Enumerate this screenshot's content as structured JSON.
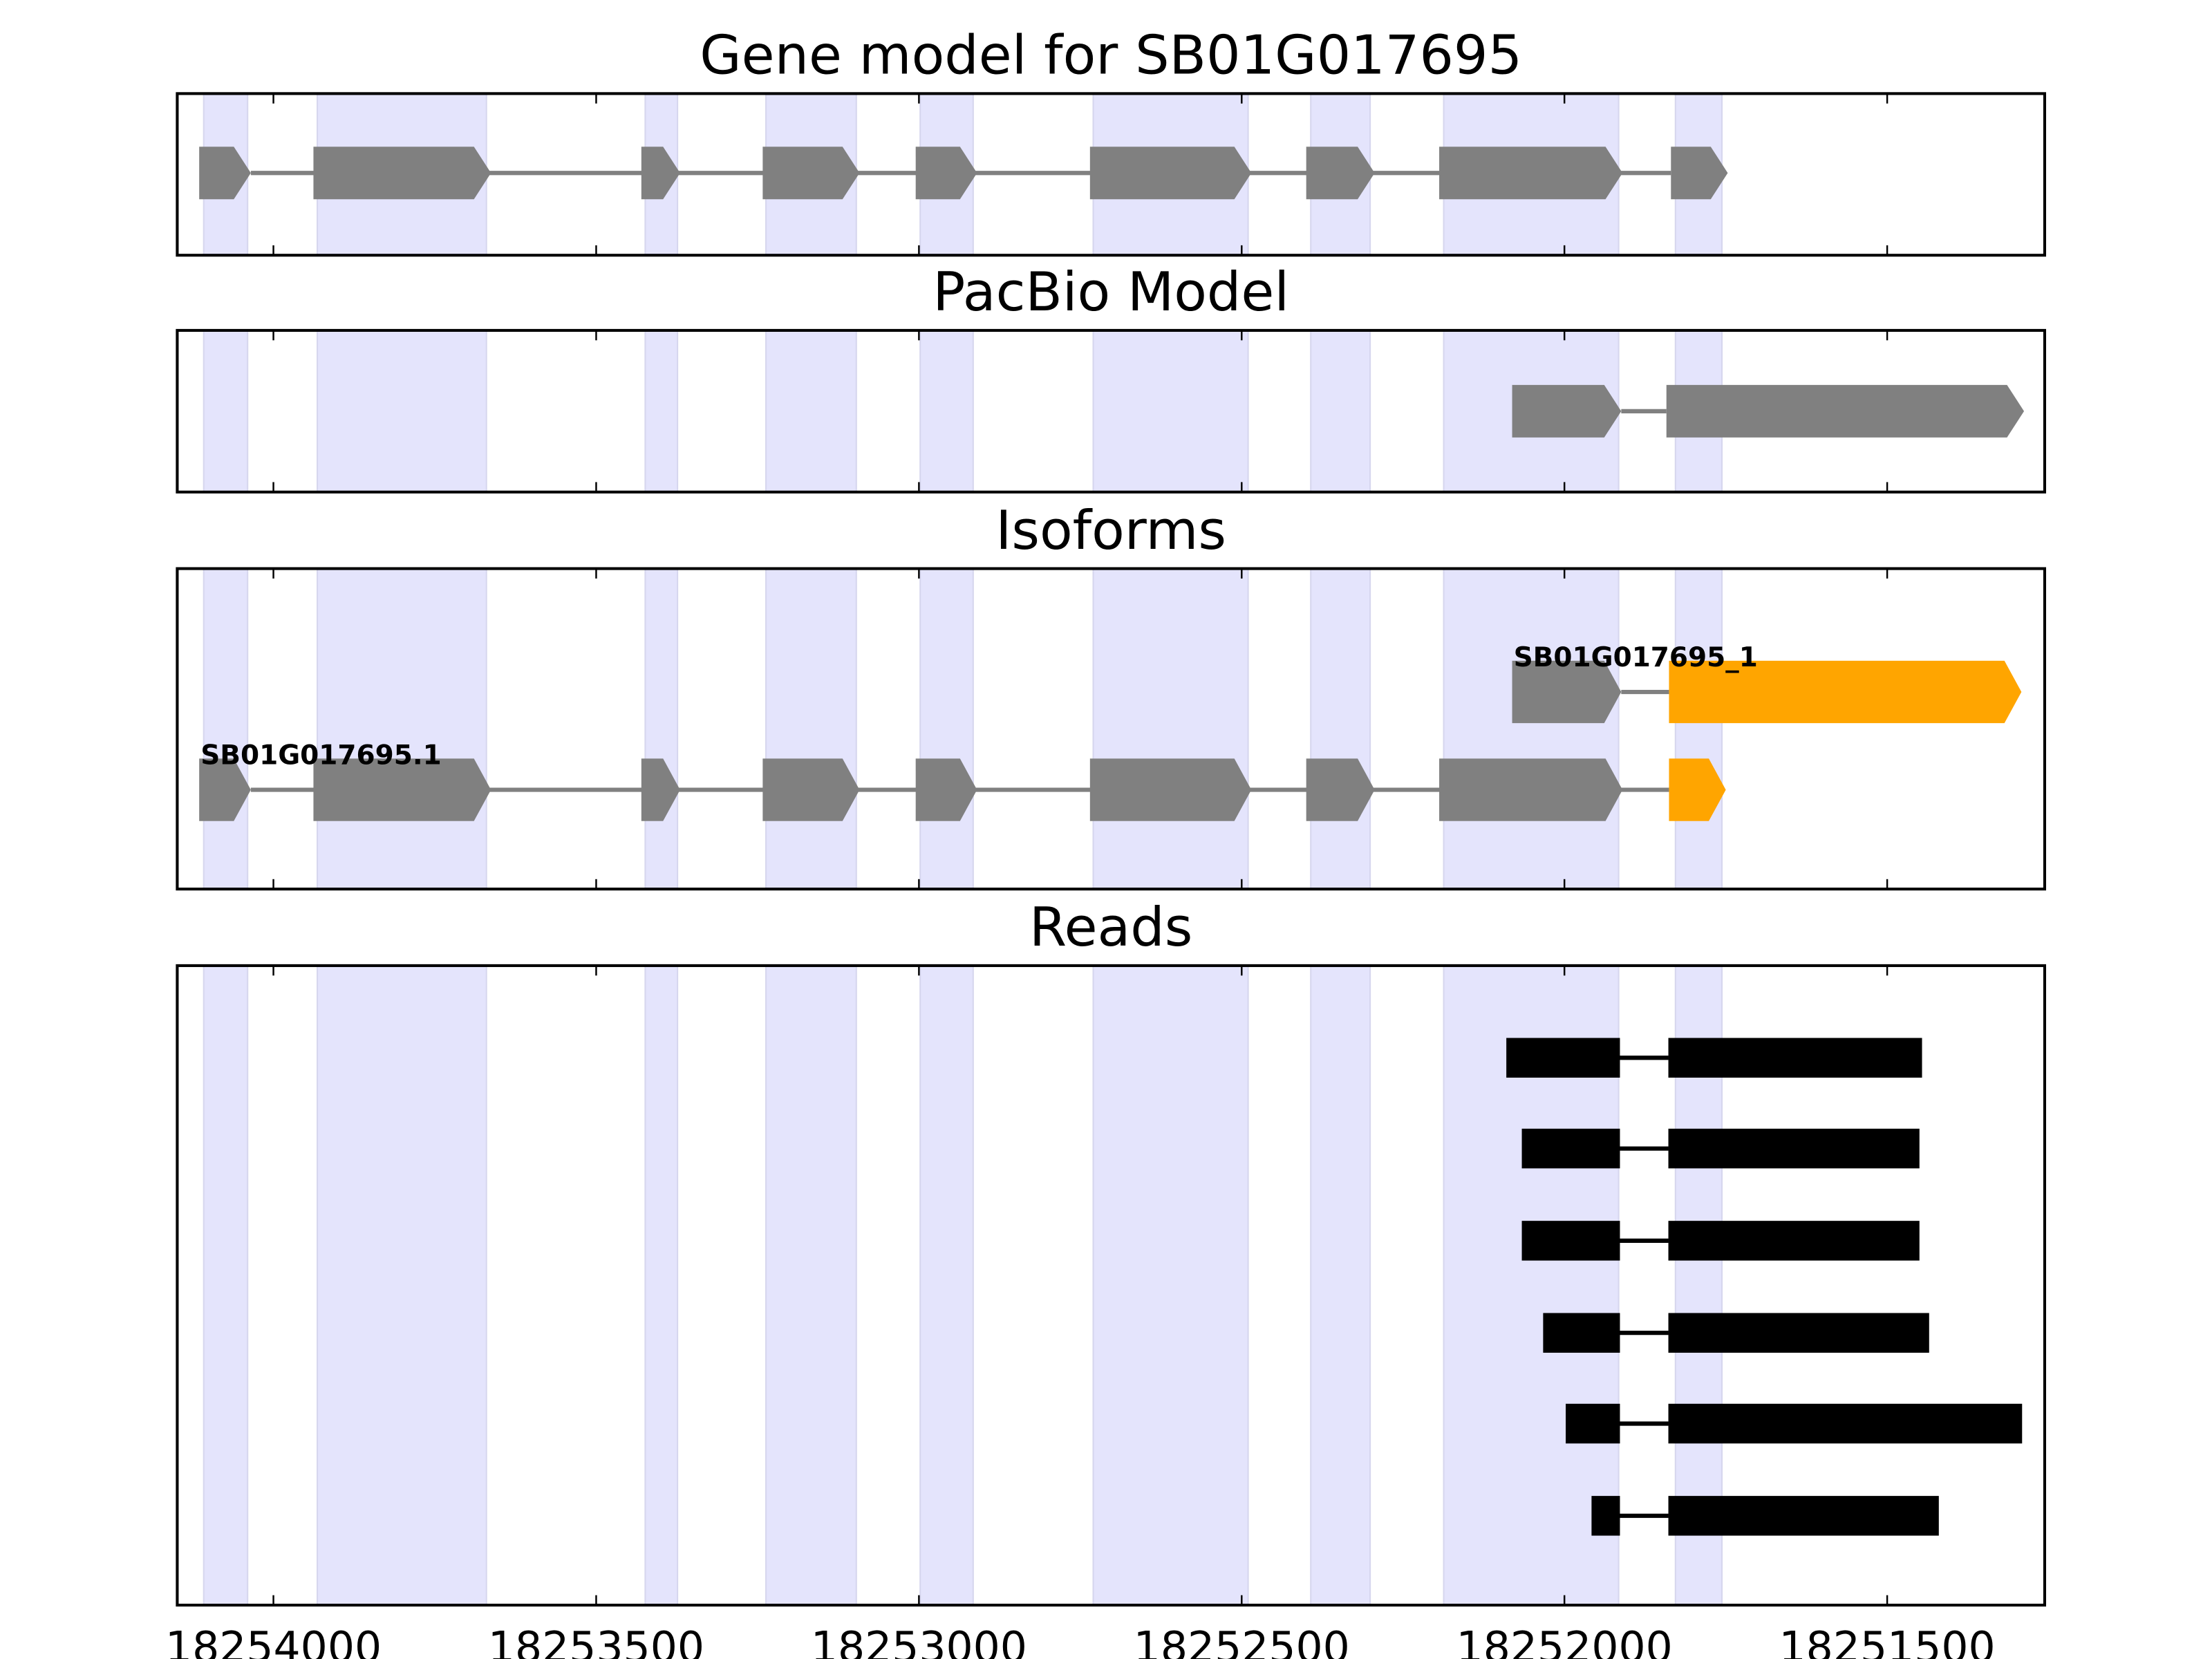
{
  "chart_data": {
    "type": "gene-track",
    "xlim": [
      18254149,
      18251256
    ],
    "xticks": [
      18254000,
      18253500,
      18253000,
      18252500,
      18252000,
      18251500
    ],
    "xtick_labels": [
      "18254000",
      "18253500",
      "18253000",
      "18252500",
      "18252000",
      "18251500"
    ],
    "shaded_regions": [
      [
        18254108,
        18254040
      ],
      [
        18253932,
        18253670
      ],
      [
        18253424,
        18253374
      ],
      [
        18253237,
        18253097
      ],
      [
        18252998,
        18252916
      ],
      [
        18252730,
        18252490
      ],
      [
        18252393,
        18252301
      ],
      [
        18252187,
        18251916
      ],
      [
        18251828,
        18251756
      ]
    ],
    "shade_color": "#e4e4fc",
    "colors": {
      "exon": "#808080",
      "highlight": "#ffa500",
      "read": "#000000",
      "intron": "#808080"
    },
    "panels": [
      {
        "title": "Gene model for SB01G017695",
        "tracks": [
          {
            "label": "",
            "exons": [
              [
                18254115,
                18254035
              ],
              [
                18253938,
                18253663
              ],
              [
                18253430,
                18253370
              ],
              [
                18253242,
                18253092
              ],
              [
                18253005,
                18252910
              ],
              [
                18252735,
                18252485
              ],
              [
                18252400,
                18252294
              ],
              [
                18252194,
                18251910
              ],
              [
                18251835,
                18251747
              ]
            ],
            "highlight": []
          }
        ]
      },
      {
        "title": "PacBio Model",
        "tracks": [
          {
            "label": "",
            "exons": [
              [
                18252081,
                18251912
              ],
              [
                18251842,
                18251288
              ]
            ],
            "highlight": []
          }
        ]
      },
      {
        "title": "Isoforms",
        "tracks": [
          {
            "label": "SB01G017695_1",
            "exons": [
              [
                18252081,
                18251912
              ],
              [
                18251838,
                18251292
              ]
            ],
            "highlight": [
              1
            ]
          },
          {
            "label": "SB01G017695.1",
            "exons": [
              [
                18254115,
                18254035
              ],
              [
                18253938,
                18253663
              ],
              [
                18253430,
                18253370
              ],
              [
                18253242,
                18253092
              ],
              [
                18253005,
                18252910
              ],
              [
                18252735,
                18252485
              ],
              [
                18252400,
                18252294
              ],
              [
                18252194,
                18251910
              ],
              [
                18251838,
                18251750
              ]
            ],
            "highlight": [
              8
            ]
          }
        ]
      },
      {
        "title": "Reads",
        "reads": [
          [
            [
              18252090,
              18251914
            ],
            [
              18251839,
              18251446
            ]
          ],
          [
            [
              18252066,
              18251914
            ],
            [
              18251839,
              18251450
            ]
          ],
          [
            [
              18252066,
              18251914
            ],
            [
              18251839,
              18251450
            ]
          ],
          [
            [
              18252033,
              18251914
            ],
            [
              18251839,
              18251435
            ]
          ],
          [
            [
              18251998,
              18251914
            ],
            [
              18251839,
              18251291
            ]
          ],
          [
            [
              18251958,
              18251914
            ],
            [
              18251839,
              18251420
            ]
          ]
        ]
      }
    ]
  }
}
